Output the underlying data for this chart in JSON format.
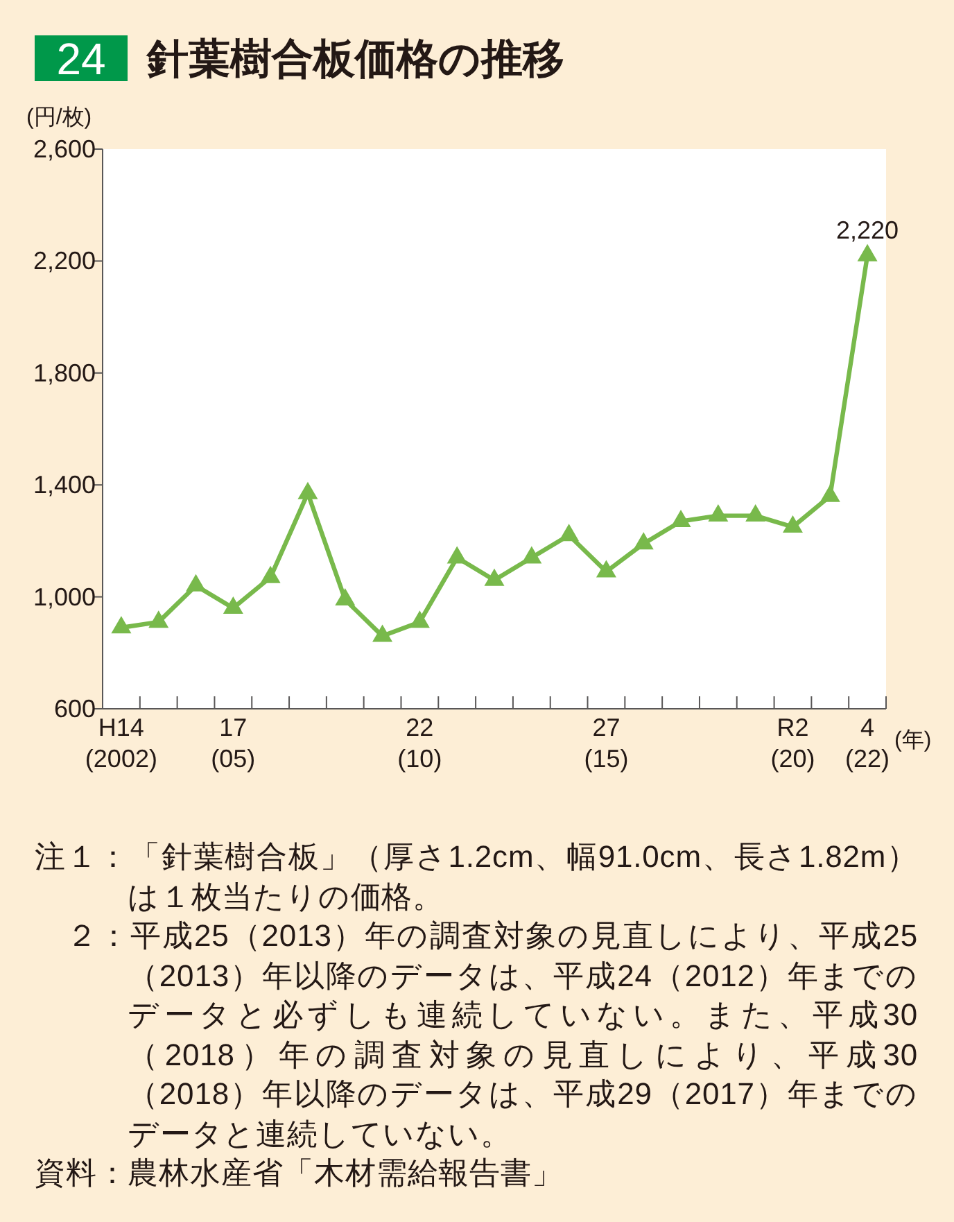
{
  "chart_data": {
    "type": "line",
    "title": "針葉樹合板価格の推移",
    "ylabel": "(円/枚)",
    "xlabel": "(年)",
    "categories": [
      "H14\n(2002)",
      null,
      null,
      "17\n(05)",
      null,
      null,
      null,
      null,
      "22\n(10)",
      null,
      null,
      null,
      null,
      "27\n(15)",
      null,
      null,
      null,
      null,
      "R2\n(20)",
      null,
      "4\n(22)"
    ],
    "values": [
      890,
      910,
      1040,
      960,
      1070,
      1370,
      990,
      860,
      910,
      1140,
      1060,
      1140,
      1220,
      1090,
      1190,
      1270,
      1290,
      1290,
      1250,
      1360,
      2220
    ],
    "value_labels": [
      null,
      null,
      null,
      null,
      null,
      null,
      null,
      null,
      null,
      null,
      null,
      null,
      null,
      null,
      null,
      null,
      null,
      null,
      null,
      null,
      "2,220"
    ],
    "color": "#78b94b",
    "marker": "triangle",
    "line_style": "solid",
    "ylim": [
      600,
      2600
    ],
    "yticks": [
      600,
      {
        "value": 1000,
        "label": "1,000"
      },
      {
        "value": 1400,
        "label": "1,400"
      },
      {
        "value": 1800,
        "label": "1,800"
      },
      {
        "value": 2200,
        "label": "2,200"
      },
      {
        "value": 2600,
        "label": "2,600"
      }
    ],
    "annotations": [
      "24",
      "注１：「針葉樹合板」（厚さ1.2cm、幅91.0cm、長さ1.82m）は１枚当たりの価格。",
      "２：平成25（2013）年の調査対象の見直しにより、平成25（2013）年以降のデータは、平成24（2012）年までのデータと必ずしも連続していない。また、平成30（2018）年の調査対象の見直しにより、平成30（2018）年以降のデータは、平成29（2017）年までのデータと連続していない。",
      "資料：農林水産省「木材需給報告書」"
    ]
  }
}
